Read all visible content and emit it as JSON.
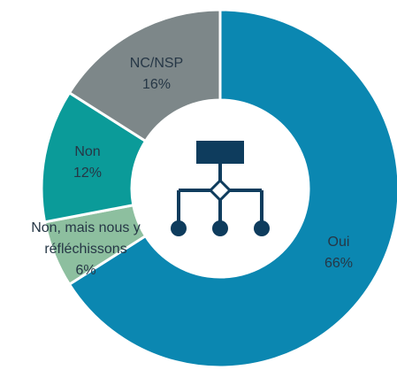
{
  "chart_data": {
    "type": "donut",
    "categories": [
      "Oui",
      "Non, mais nous y réfléchissons",
      "Non",
      "NC/NSP"
    ],
    "values": [
      66,
      6,
      12,
      16
    ],
    "value_labels": [
      "66%",
      "6%",
      "12%",
      "16%"
    ],
    "colors": [
      "#0b87b1",
      "#8dbf9f",
      "#0b9b99",
      "#7d8789"
    ]
  }
}
